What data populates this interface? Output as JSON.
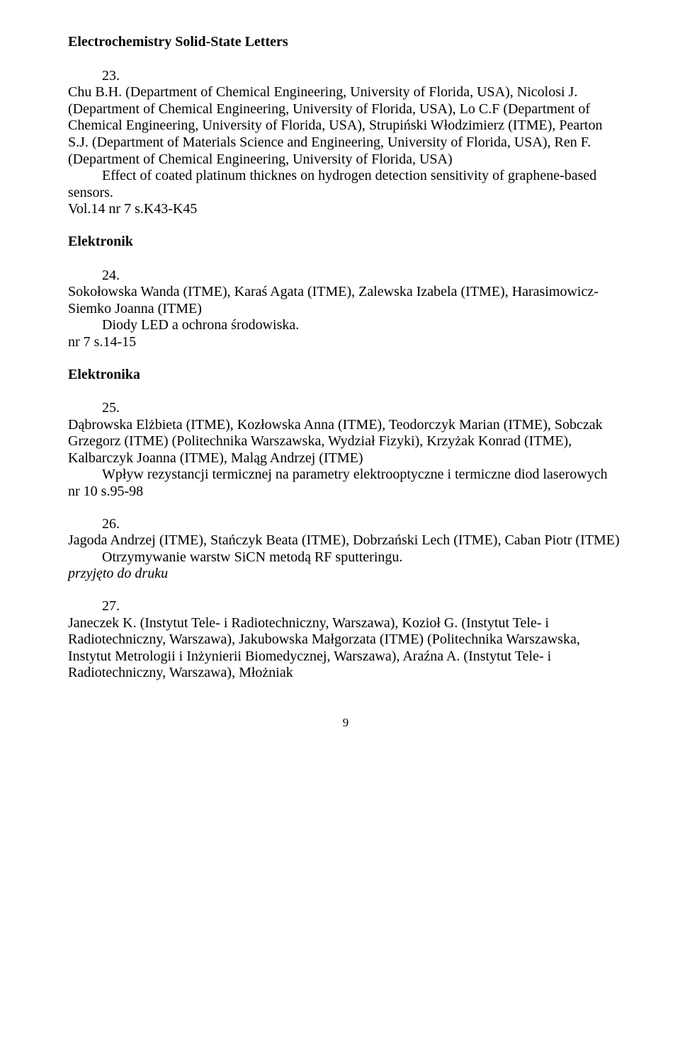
{
  "heading1": "Electrochemistry Solid-State Letters",
  "entry23": {
    "num": "23.",
    "p1": "Chu B.H. (Department of Chemical Engineering, University of Florida, USA), Nicolosi J. (Department of Chemical Engineering, University of Florida, USA), Lo C.F (Department of Chemical Engineering, University of Florida, USA), Strupiński Włodzimierz (ITME), Pearton S.J. (Department of Materials Science and Engineering, University of Florida, USA), Ren F. (Department of Chemical Engineering, University of Florida, USA)",
    "p2": "Effect of coated platinum thicknes on hydrogen detection sensitivity of graphene-based sensors.",
    "p3": "Vol.14 nr 7 s.K43-K45"
  },
  "heading2": "Elektronik",
  "entry24": {
    "num": "24.",
    "p1": "Sokołowska Wanda (ITME), Karaś Agata (ITME), Zalewska Izabela (ITME), Harasimowicz-Siemko Joanna (ITME)",
    "p2": "Diody LED a ochrona środowiska.",
    "p3": "nr 7 s.14-15"
  },
  "heading3": "Elektronika",
  "entry25": {
    "num": "25.",
    "p1": "Dąbrowska Elżbieta (ITME), Kozłowska Anna (ITME), Teodorczyk Marian (ITME), Sobczak Grzegorz (ITME) (Politechnika Warszawska, Wydział Fizyki), Krzyżak Konrad (ITME), Kalbarczyk Joanna (ITME), Maląg Andrzej (ITME)",
    "p2": "Wpływ rezystancji termicznej na parametry elektrooptyczne i termiczne diod laserowych",
    "p3": "nr 10 s.95-98"
  },
  "entry26": {
    "num": "26.",
    "p1": "Jagoda Andrzej (ITME), Stańczyk Beata (ITME), Dobrzański Lech (ITME), Caban Piotr (ITME)",
    "p2": "Otrzymywanie warstw SiCN metodą RF sputteringu.",
    "p3_italic": "przyjęto do druku"
  },
  "entry27": {
    "num": "27.",
    "p1": "Janeczek K. (Instytut Tele- i Radiotechniczny, Warszawa), Kozioł G. (Instytut Tele- i Radiotechniczny, Warszawa), Jakubowska Małgorzata (ITME) (Politechnika Warszawska, Instytut Metrologii i Inżynierii Biomedycznej, Warszawa), Araźna A. (Instytut Tele- i Radiotechniczny, Warszawa), Młożniak"
  },
  "page_number": "9"
}
